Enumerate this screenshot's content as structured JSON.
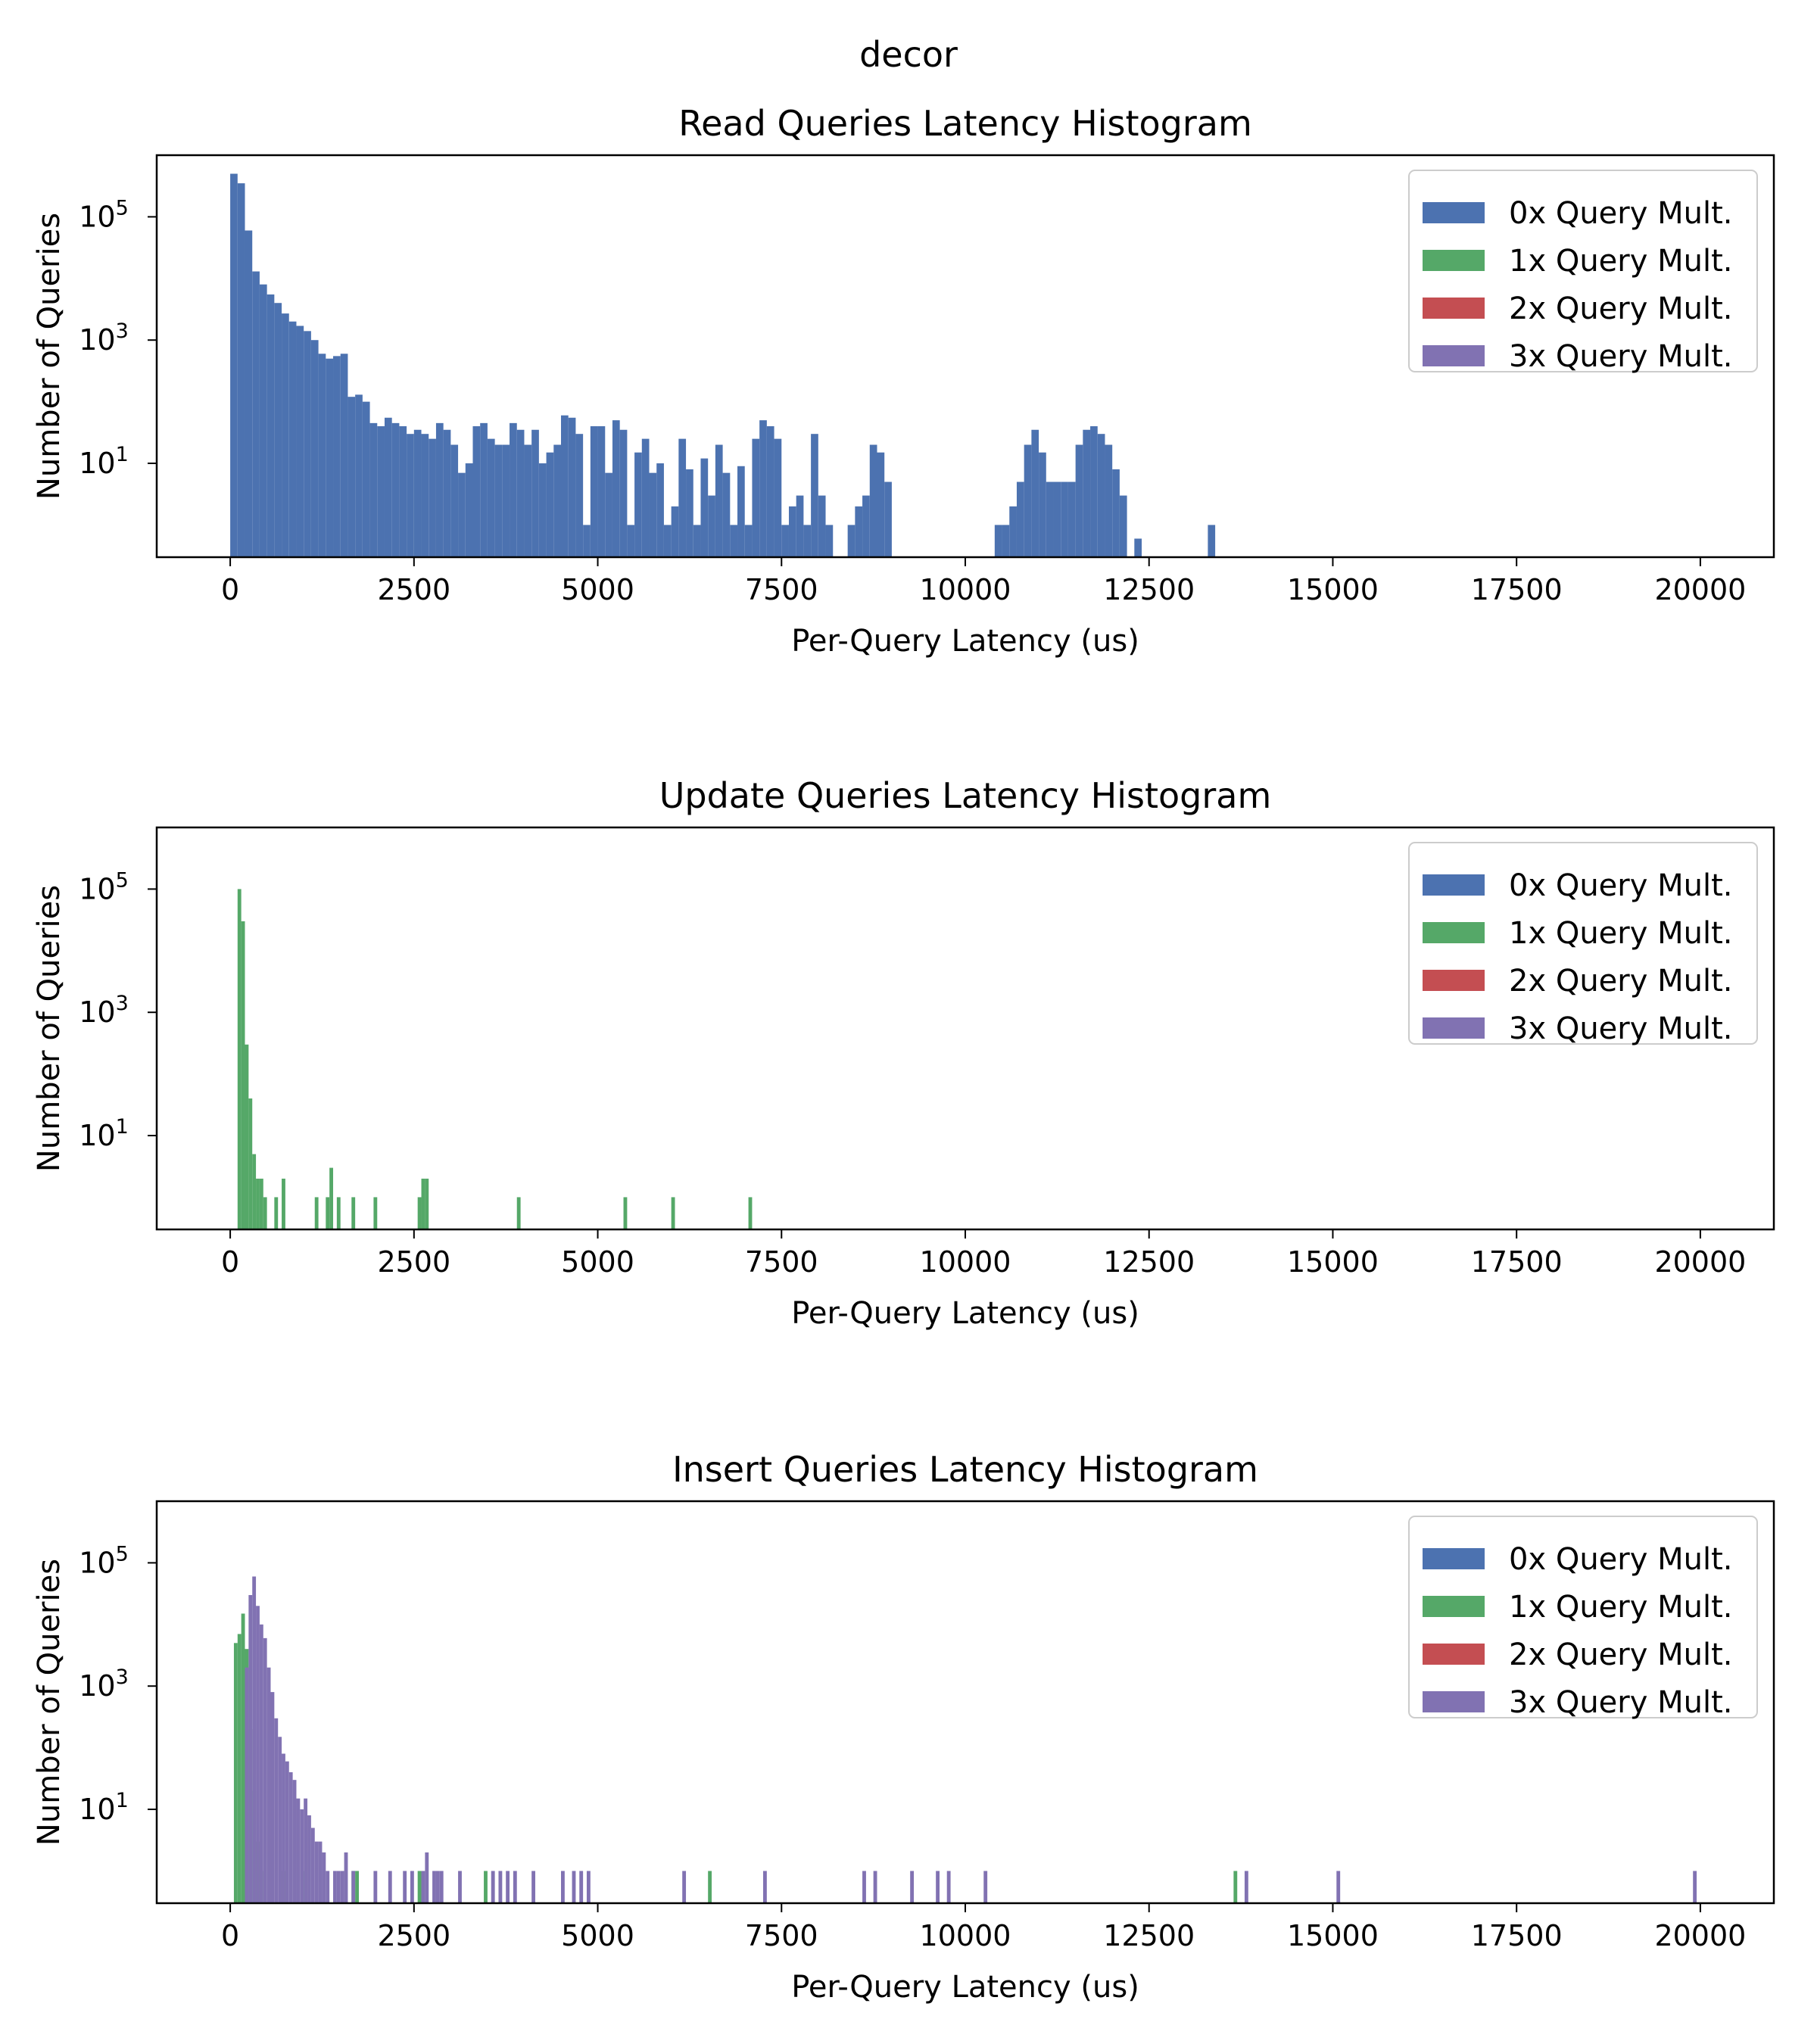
{
  "figure": {
    "suptitle": "decor"
  },
  "colors": {
    "0x Query Mult.": "#4c72b0",
    "1x Query Mult.": "#55a868",
    "2x Query Mult.": "#c44e52",
    "3x Query Mult.": "#8172b2"
  },
  "chart_data": [
    {
      "type": "bar",
      "title": "Read Queries Latency Histogram",
      "xlabel": "Per-Query Latency (us)",
      "ylabel": "Number of Queries",
      "xlim": [
        -1000,
        21000
      ],
      "ylim": [
        0.3,
        1000000
      ],
      "yscale": "log",
      "xticks": [
        0,
        2500,
        5000,
        7500,
        10000,
        12500,
        15000,
        17500,
        20000
      ],
      "yticks": [
        {
          "value": 10,
          "label": "10^1"
        },
        {
          "value": 1000,
          "label": "10^3"
        },
        {
          "value": 100000,
          "label": "10^5"
        }
      ],
      "grid": false,
      "legend": {
        "position": "top-right",
        "entries": [
          "0x Query Mult.",
          "1x Query Mult.",
          "2x Query Mult.",
          "3x Query Mult."
        ]
      },
      "bin_width": 100,
      "series": [
        {
          "name": "0x Query Mult.",
          "bins": [
            [
              0,
              500000
            ],
            [
              100,
              350000
            ],
            [
              200,
              60000
            ],
            [
              300,
              13000
            ],
            [
              400,
              8000
            ],
            [
              500,
              5500
            ],
            [
              600,
              4000
            ],
            [
              700,
              2700
            ],
            [
              800,
              2000
            ],
            [
              900,
              1700
            ],
            [
              1000,
              1400
            ],
            [
              1100,
              1000
            ],
            [
              1200,
              600
            ],
            [
              1300,
              500
            ],
            [
              1400,
              550
            ],
            [
              1500,
              600
            ],
            [
              1600,
              120
            ],
            [
              1700,
              130
            ],
            [
              1800,
              100
            ],
            [
              1900,
              45
            ],
            [
              2000,
              40
            ],
            [
              2100,
              55
            ],
            [
              2200,
              45
            ],
            [
              2300,
              40
            ],
            [
              2400,
              30
            ],
            [
              2500,
              35
            ],
            [
              2600,
              30
            ],
            [
              2700,
              25
            ],
            [
              2800,
              45
            ],
            [
              2900,
              35
            ],
            [
              3000,
              20
            ],
            [
              3100,
              7
            ],
            [
              3200,
              10
            ],
            [
              3300,
              40
            ],
            [
              3400,
              45
            ],
            [
              3500,
              25
            ],
            [
              3600,
              20
            ],
            [
              3700,
              20
            ],
            [
              3800,
              45
            ],
            [
              3900,
              35
            ],
            [
              4000,
              20
            ],
            [
              4100,
              35
            ],
            [
              4200,
              10
            ],
            [
              4300,
              15
            ],
            [
              4400,
              20
            ],
            [
              4500,
              60
            ],
            [
              4600,
              55
            ],
            [
              4700,
              30
            ],
            [
              4800,
              1
            ],
            [
              4900,
              40
            ],
            [
              5000,
              40
            ],
            [
              5100,
              7
            ],
            [
              5200,
              50
            ],
            [
              5300,
              35
            ],
            [
              5400,
              1
            ],
            [
              5500,
              15
            ],
            [
              5600,
              25
            ],
            [
              5700,
              7
            ],
            [
              5800,
              10
            ],
            [
              5900,
              1
            ],
            [
              6000,
              2
            ],
            [
              6100,
              25
            ],
            [
              6200,
              8
            ],
            [
              6300,
              1
            ],
            [
              6400,
              12
            ],
            [
              6500,
              3
            ],
            [
              6600,
              20
            ],
            [
              6700,
              7
            ],
            [
              6800,
              1
            ],
            [
              6900,
              9
            ],
            [
              7000,
              1
            ],
            [
              7100,
              25
            ],
            [
              7200,
              50
            ],
            [
              7300,
              40
            ],
            [
              7400,
              25
            ],
            [
              7500,
              1
            ],
            [
              7600,
              2
            ],
            [
              7700,
              3
            ],
            [
              7800,
              1
            ],
            [
              7900,
              30
            ],
            [
              8000,
              3
            ],
            [
              8100,
              1
            ],
            [
              8400,
              1
            ],
            [
              8500,
              2
            ],
            [
              8600,
              3
            ],
            [
              8700,
              20
            ],
            [
              8800,
              15
            ],
            [
              8900,
              5
            ],
            [
              10400,
              1
            ],
            [
              10500,
              1
            ],
            [
              10600,
              2
            ],
            [
              10700,
              5
            ],
            [
              10800,
              20
            ],
            [
              10900,
              35
            ],
            [
              11000,
              15
            ],
            [
              11100,
              5
            ],
            [
              11200,
              5
            ],
            [
              11300,
              5
            ],
            [
              11400,
              5
            ],
            [
              11500,
              20
            ],
            [
              11600,
              35
            ],
            [
              11700,
              40
            ],
            [
              11800,
              30
            ],
            [
              11900,
              20
            ],
            [
              12000,
              8
            ],
            [
              12100,
              3
            ],
            [
              12300,
              0.6
            ],
            [
              13300,
              1
            ]
          ]
        },
        {
          "name": "1x Query Mult.",
          "bins": []
        },
        {
          "name": "2x Query Mult.",
          "bins": []
        },
        {
          "name": "3x Query Mult.",
          "bins": []
        }
      ]
    },
    {
      "type": "bar",
      "title": "Update Queries Latency Histogram",
      "xlabel": "Per-Query Latency (us)",
      "ylabel": "Number of Queries",
      "xlim": [
        -1000,
        21000
      ],
      "ylim": [
        0.3,
        1000000
      ],
      "yscale": "log",
      "xticks": [
        0,
        2500,
        5000,
        7500,
        10000,
        12500,
        15000,
        17500,
        20000
      ],
      "yticks": [
        {
          "value": 10,
          "label": "10^1"
        },
        {
          "value": 1000,
          "label": "10^3"
        },
        {
          "value": 100000,
          "label": "10^5"
        }
      ],
      "grid": false,
      "legend": {
        "position": "top-right",
        "entries": [
          "0x Query Mult.",
          "1x Query Mult.",
          "2x Query Mult.",
          "3x Query Mult."
        ]
      },
      "bin_width": 50,
      "series": [
        {
          "name": "0x Query Mult.",
          "bins": []
        },
        {
          "name": "1x Query Mult.",
          "bins": [
            [
              100,
              100000
            ],
            [
              150,
              30000
            ],
            [
              200,
              300
            ],
            [
              250,
              40
            ],
            [
              300,
              5
            ],
            [
              350,
              2
            ],
            [
              400,
              2
            ],
            [
              450,
              1
            ],
            [
              600,
              1
            ],
            [
              700,
              2
            ],
            [
              1150,
              1
            ],
            [
              1300,
              1
            ],
            [
              1350,
              3
            ],
            [
              1450,
              1
            ],
            [
              1650,
              1
            ],
            [
              1950,
              1
            ],
            [
              2550,
              1
            ],
            [
              2600,
              2
            ],
            [
              2650,
              2
            ],
            [
              3900,
              1
            ],
            [
              5350,
              1
            ],
            [
              6000,
              1
            ],
            [
              7050,
              1
            ]
          ]
        },
        {
          "name": "2x Query Mult.",
          "bins": []
        },
        {
          "name": "3x Query Mult.",
          "bins": []
        }
      ]
    },
    {
      "type": "bar",
      "title": "Insert Queries Latency Histogram",
      "xlabel": "Per-Query Latency (us)",
      "ylabel": "Number of Queries",
      "xlim": [
        -1000,
        21000
      ],
      "ylim": [
        0.3,
        1000000
      ],
      "yscale": "log",
      "xticks": [
        0,
        2500,
        5000,
        7500,
        10000,
        12500,
        15000,
        17500,
        20000
      ],
      "yticks": [
        {
          "value": 10,
          "label": "10^1"
        },
        {
          "value": 1000,
          "label": "10^3"
        },
        {
          "value": 100000,
          "label": "10^5"
        }
      ],
      "grid": false,
      "legend": {
        "position": "top-right",
        "entries": [
          "0x Query Mult.",
          "1x Query Mult.",
          "2x Query Mult.",
          "3x Query Mult."
        ]
      },
      "bin_width": 50,
      "series": [
        {
          "name": "0x Query Mult.",
          "bins": []
        },
        {
          "name": "1x Query Mult.",
          "bins": [
            [
              50,
              5000
            ],
            [
              100,
              7000
            ],
            [
              150,
              15000
            ],
            [
              200,
              4000
            ],
            [
              250,
              200
            ],
            [
              300,
              20
            ],
            [
              350,
              3
            ],
            [
              400,
              1
            ],
            [
              700,
              1
            ],
            [
              1000,
              1
            ],
            [
              1650,
              1
            ],
            [
              1700,
              1
            ],
            [
              2550,
              1
            ],
            [
              3450,
              1
            ],
            [
              6500,
              1
            ],
            [
              13650,
              1
            ]
          ]
        },
        {
          "name": "2x Query Mult.",
          "bins": []
        },
        {
          "name": "3x Query Mult.",
          "bins": [
            [
              200,
              2000
            ],
            [
              250,
              30000
            ],
            [
              300,
              60000
            ],
            [
              350,
              20000
            ],
            [
              400,
              10000
            ],
            [
              450,
              6000
            ],
            [
              500,
              2000
            ],
            [
              550,
              800
            ],
            [
              600,
              300
            ],
            [
              650,
              150
            ],
            [
              700,
              80
            ],
            [
              750,
              60
            ],
            [
              800,
              40
            ],
            [
              850,
              30
            ],
            [
              900,
              15
            ],
            [
              950,
              10
            ],
            [
              1000,
              15
            ],
            [
              1050,
              8
            ],
            [
              1100,
              5
            ],
            [
              1150,
              3
            ],
            [
              1200,
              3
            ],
            [
              1250,
              2
            ],
            [
              1300,
              1
            ],
            [
              1400,
              1
            ],
            [
              1450,
              1
            ],
            [
              1500,
              1
            ],
            [
              1550,
              2
            ],
            [
              1650,
              1
            ],
            [
              1950,
              1
            ],
            [
              2150,
              1
            ],
            [
              2350,
              1
            ],
            [
              2450,
              1
            ],
            [
              2600,
              1
            ],
            [
              2650,
              2
            ],
            [
              2750,
              1
            ],
            [
              2800,
              1
            ],
            [
              2850,
              1
            ],
            [
              3100,
              1
            ],
            [
              3550,
              1
            ],
            [
              3650,
              1
            ],
            [
              3750,
              1
            ],
            [
              3850,
              1
            ],
            [
              4100,
              1
            ],
            [
              4500,
              1
            ],
            [
              4650,
              1
            ],
            [
              4750,
              1
            ],
            [
              4850,
              1
            ],
            [
              6150,
              1
            ],
            [
              7250,
              1
            ],
            [
              8600,
              1
            ],
            [
              8750,
              1
            ],
            [
              9250,
              1
            ],
            [
              9600,
              1
            ],
            [
              9750,
              1
            ],
            [
              10250,
              1
            ],
            [
              13800,
              1
            ],
            [
              15050,
              1
            ],
            [
              19900,
              1
            ]
          ]
        }
      ]
    }
  ]
}
